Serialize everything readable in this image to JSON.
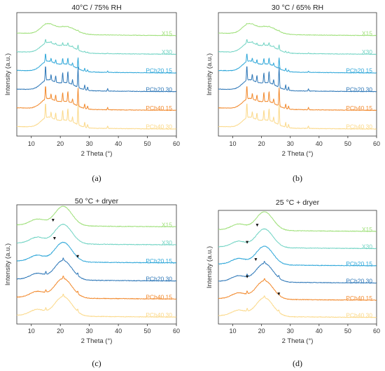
{
  "chart_data": [
    {
      "type": "line",
      "panel_label": "(a)",
      "title": "40°C / 75% RH",
      "xlabel": "2 Theta (°)",
      "ylabel": "Intensity (a.u.)",
      "xlim": [
        5,
        60
      ],
      "xticks": [
        10,
        20,
        30,
        40,
        50,
        60
      ],
      "regime": "crystalline",
      "series": [
        {
          "name": "X15",
          "color": "#9fe07a"
        },
        {
          "name": "X30",
          "color": "#72d4c4"
        },
        {
          "name": "PCh20 15",
          "color": "#2fa7d9"
        },
        {
          "name": "PCh20 30",
          "color": "#2f78b8"
        },
        {
          "name": "PCh40 15",
          "color": "#f28a2e"
        },
        {
          "name": "PCh40 30",
          "color": "#fbd98a"
        }
      ]
    },
    {
      "type": "line",
      "panel_label": "(b)",
      "title": "30 °C / 65% RH",
      "xlabel": "2 Theta (°)",
      "ylabel": "Intensity (a.u.)",
      "xlim": [
        5,
        60
      ],
      "xticks": [
        10,
        20,
        30,
        40,
        50,
        60
      ],
      "regime": "crystalline",
      "series": [
        {
          "name": "X15",
          "color": "#9fe07a"
        },
        {
          "name": "X30",
          "color": "#72d4c4"
        },
        {
          "name": "PCh20 15",
          "color": "#2fa7d9"
        },
        {
          "name": "PCh20 30",
          "color": "#2f78b8"
        },
        {
          "name": "PCh40 15",
          "color": "#f28a2e"
        },
        {
          "name": "PCh40 30",
          "color": "#fbd98a"
        }
      ]
    },
    {
      "type": "line",
      "panel_label": "(c)",
      "title": "50 °C + dryer",
      "xlabel": "2 Theta (°)",
      "ylabel": "Intensity (a.u.)",
      "xlim": [
        5,
        60
      ],
      "xticks": [
        10,
        20,
        30,
        40,
        50,
        60
      ],
      "regime": "amorphous",
      "markers_2theta": [
        17.5,
        18,
        26
      ],
      "series": [
        {
          "name": "X15",
          "color": "#9fe07a"
        },
        {
          "name": "X30",
          "color": "#72d4c4"
        },
        {
          "name": "PCh20 15",
          "color": "#2fa7d9"
        },
        {
          "name": "PCh20 30",
          "color": "#2f78b8"
        },
        {
          "name": "PCh40 15",
          "color": "#f28a2e"
        },
        {
          "name": "PCh40 30",
          "color": "#fbd98a"
        }
      ]
    },
    {
      "type": "line",
      "panel_label": "(d)",
      "title": "25 °C + dryer",
      "xlabel": "2 Theta (°)",
      "ylabel": "Intensity (a.u.)",
      "xlim": [
        5,
        60
      ],
      "xticks": [
        10,
        20,
        30,
        40,
        50,
        60
      ],
      "regime": "amorphous",
      "markers_2theta": [
        18.5,
        15,
        18,
        15,
        26
      ],
      "series": [
        {
          "name": "X15",
          "color": "#9fe07a"
        },
        {
          "name": "X30",
          "color": "#72d4c4"
        },
        {
          "name": "PCh20 15",
          "color": "#2fa7d9"
        },
        {
          "name": "PCh20 30",
          "color": "#2f78b8"
        },
        {
          "name": "PCh40 15",
          "color": "#f28a2e"
        },
        {
          "name": "PCh40 30",
          "color": "#fbd98a"
        }
      ]
    }
  ]
}
